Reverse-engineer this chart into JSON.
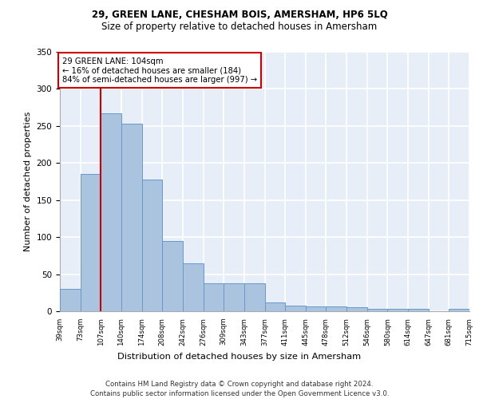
{
  "title1": "29, GREEN LANE, CHESHAM BOIS, AMERSHAM, HP6 5LQ",
  "title2": "Size of property relative to detached houses in Amersham",
  "xlabel": "Distribution of detached houses by size in Amersham",
  "ylabel": "Number of detached properties",
  "footer1": "Contains HM Land Registry data © Crown copyright and database right 2024.",
  "footer2": "Contains public sector information licensed under the Open Government Licence v3.0.",
  "annotation_line1": "29 GREEN LANE: 104sqm",
  "annotation_line2": "← 16% of detached houses are smaller (184)",
  "annotation_line3": "84% of semi-detached houses are larger (997) →",
  "bar_values": [
    30,
    185,
    267,
    253,
    178,
    95,
    65,
    38,
    38,
    38,
    12,
    8,
    7,
    6,
    5,
    3,
    3,
    3,
    0,
    3
  ],
  "bin_labels": [
    "39sqm",
    "73sqm",
    "107sqm",
    "140sqm",
    "174sqm",
    "208sqm",
    "242sqm",
    "276sqm",
    "309sqm",
    "343sqm",
    "377sqm",
    "411sqm",
    "445sqm",
    "478sqm",
    "512sqm",
    "546sqm",
    "580sqm",
    "614sqm",
    "647sqm",
    "681sqm",
    "715sqm"
  ],
  "bar_color": "#aac4e0",
  "bar_edge_color": "#6699cc",
  "redline_x": 2,
  "redline_color": "#cc0000",
  "background_color": "#e8eef8",
  "grid_color": "#ffffff",
  "ylim": [
    0,
    350
  ],
  "yticks": [
    0,
    50,
    100,
    150,
    200,
    250,
    300,
    350
  ]
}
